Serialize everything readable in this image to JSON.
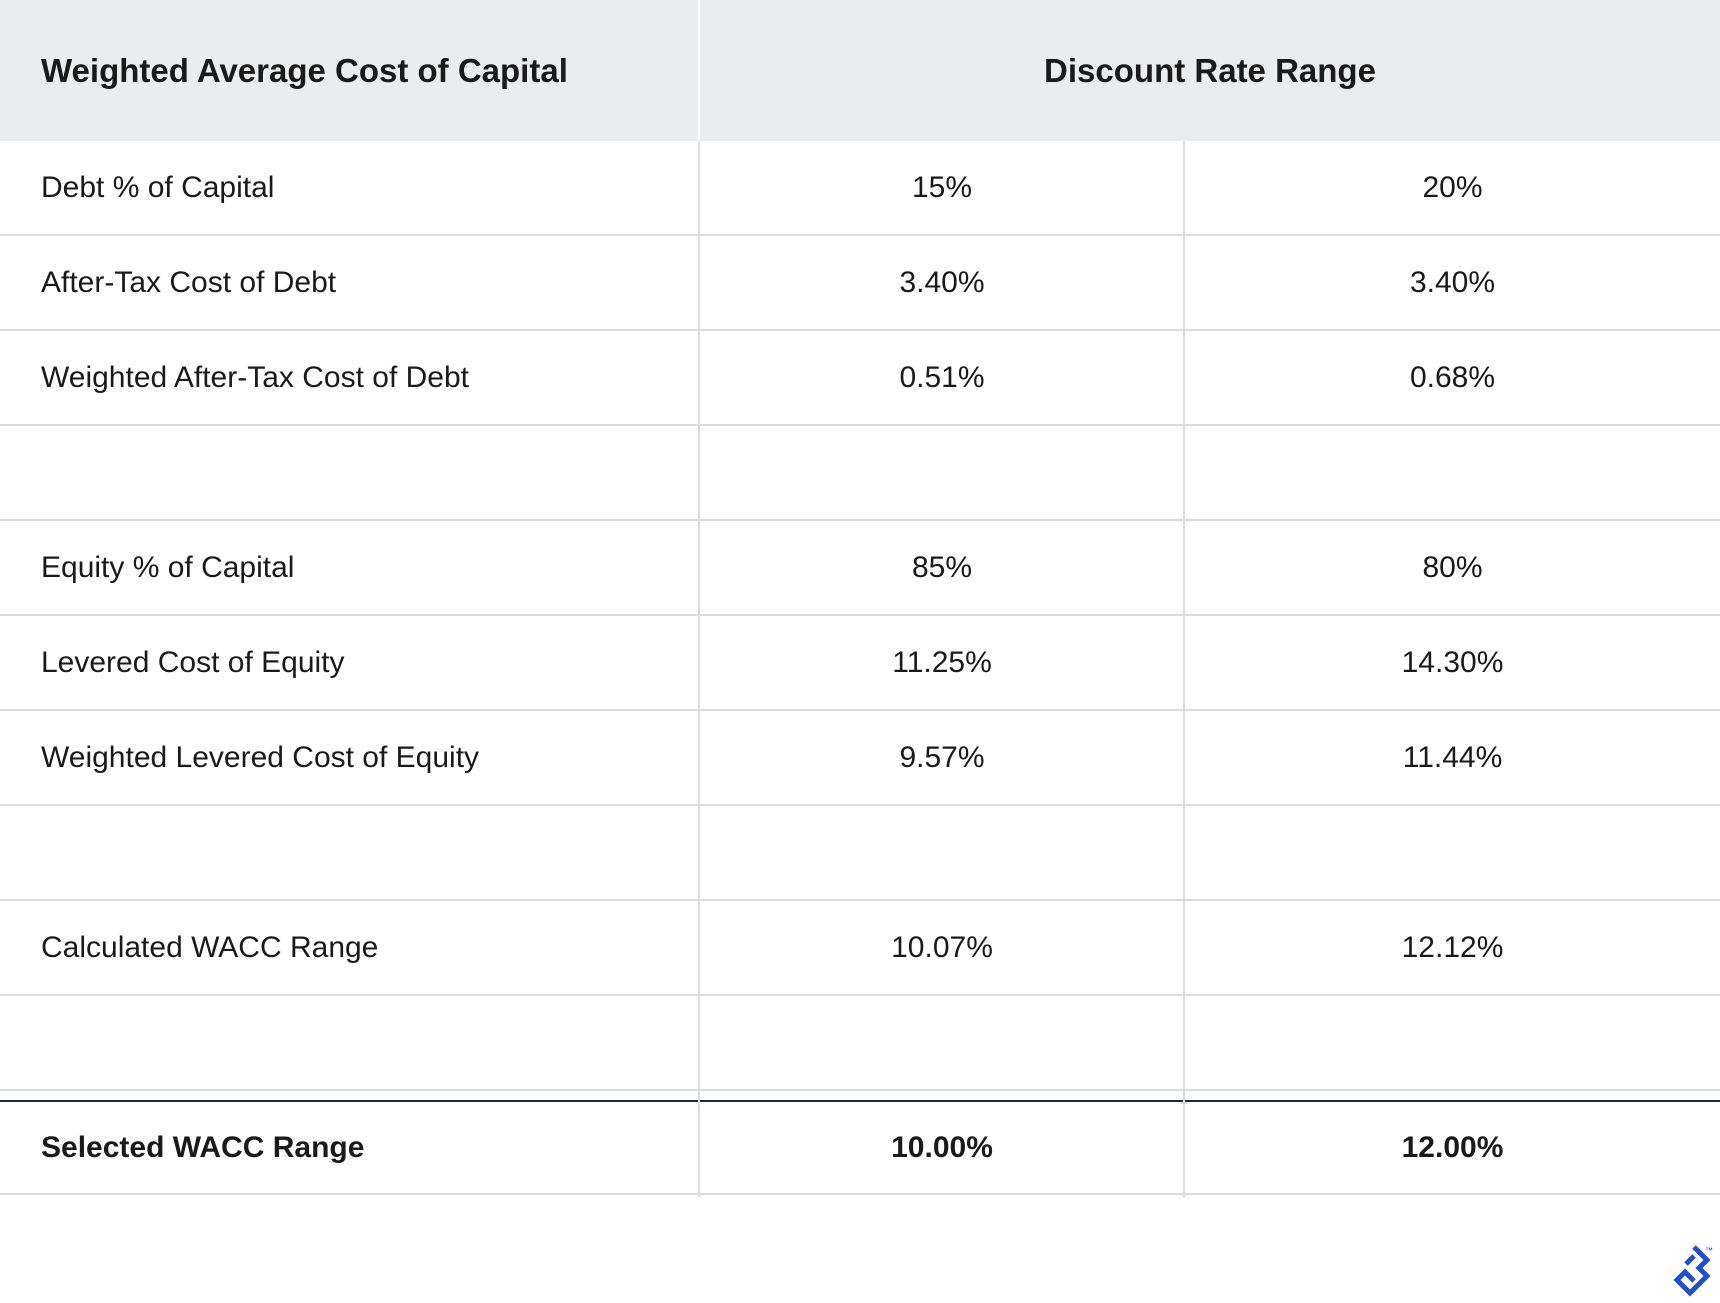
{
  "header": {
    "left_title": "Weighted Average Cost of Capital",
    "right_title": "Discount Rate Range"
  },
  "rows": [
    {
      "label": "Debt % of Capital",
      "low": "15%",
      "high": "20%"
    },
    {
      "label": "After-Tax Cost of Debt",
      "low": "3.40%",
      "high": "3.40%"
    },
    {
      "label": "Weighted After-Tax Cost of Debt",
      "low": "0.51%",
      "high": "0.68%"
    },
    {
      "label": "",
      "low": "",
      "high": ""
    },
    {
      "label": "Equity % of Capital",
      "low": "85%",
      "high": "80%"
    },
    {
      "label": "Levered Cost of Equity",
      "low": "11.25%",
      "high": "14.30%"
    },
    {
      "label": "Weighted Levered Cost of Equity",
      "low": "9.57%",
      "high": "11.44%"
    },
    {
      "label": "",
      "low": "",
      "high": ""
    },
    {
      "label": "Calculated WACC Range",
      "low": "10.07%",
      "high": "12.12%"
    },
    {
      "label": "",
      "low": "",
      "high": ""
    },
    {
      "label": "Selected WACC Range",
      "low": "10.00%",
      "high": "12.00%"
    }
  ],
  "colors": {
    "header_bg": "#ebecee",
    "grid": "#dcdcdf",
    "selected_rule": "#1d2840",
    "logo": "#204ecf"
  },
  "logo": {
    "icon": "toptal-logo-icon",
    "mark": "™"
  }
}
